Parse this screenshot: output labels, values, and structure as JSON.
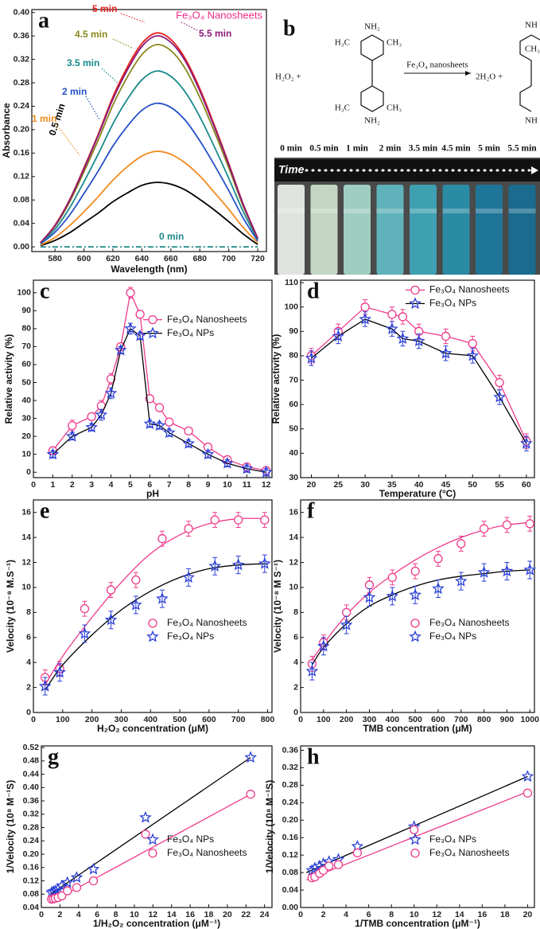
{
  "chart_data": [
    {
      "type": "line",
      "panel": "a",
      "title": "Fe₃O₄ Nanosheets",
      "x_label": "Wavelength (nm)",
      "y_label": "Absorbance",
      "x": [
        570,
        580,
        590,
        600,
        610,
        620,
        630,
        640,
        650,
        660,
        670,
        680,
        690,
        700,
        710,
        720
      ],
      "series": [
        {
          "name": "0 min",
          "color": "#1f8a8a",
          "linestyle": "dashdot",
          "values": [
            0,
            0,
            0,
            0,
            0,
            0,
            0,
            0,
            0,
            0,
            0,
            0,
            0,
            0,
            0,
            0
          ]
        },
        {
          "name": "0.5 min",
          "color": "#000000",
          "values": [
            0.002,
            0.011,
            0.024,
            0.041,
            0.058,
            0.077,
            0.092,
            0.105,
            0.11,
            0.107,
            0.097,
            0.081,
            0.063,
            0.043,
            0.022,
            0.004
          ]
        },
        {
          "name": "1 min",
          "color": "#f28a1e",
          "values": [
            0.003,
            0.016,
            0.036,
            0.06,
            0.086,
            0.114,
            0.137,
            0.155,
            0.163,
            0.158,
            0.143,
            0.121,
            0.093,
            0.064,
            0.033,
            0.007
          ]
        },
        {
          "name": "2 min",
          "color": "#2450c8",
          "values": [
            0.005,
            0.025,
            0.054,
            0.091,
            0.13,
            0.172,
            0.206,
            0.233,
            0.245,
            0.238,
            0.216,
            0.181,
            0.14,
            0.096,
            0.049,
            0.01
          ]
        },
        {
          "name": "3.5 min",
          "color": "#1a8a8c",
          "values": [
            0.006,
            0.03,
            0.066,
            0.111,
            0.159,
            0.21,
            0.252,
            0.285,
            0.3,
            0.291,
            0.264,
            0.222,
            0.171,
            0.117,
            0.06,
            0.012
          ]
        },
        {
          "name": "4.5 min",
          "color": "#8a861c",
          "values": [
            0.007,
            0.035,
            0.076,
            0.128,
            0.183,
            0.242,
            0.29,
            0.328,
            0.345,
            0.335,
            0.304,
            0.255,
            0.197,
            0.135,
            0.069,
            0.014
          ]
        },
        {
          "name": "5 min",
          "color": "#e8201e",
          "values": [
            0.007,
            0.037,
            0.08,
            0.135,
            0.193,
            0.256,
            0.307,
            0.347,
            0.365,
            0.354,
            0.321,
            0.27,
            0.208,
            0.142,
            0.073,
            0.015
          ]
        },
        {
          "name": "5.5 min",
          "color": "#8a1a7a",
          "values": [
            0.007,
            0.036,
            0.079,
            0.133,
            0.191,
            0.252,
            0.302,
            0.342,
            0.36,
            0.349,
            0.317,
            0.266,
            0.205,
            0.14,
            0.072,
            0.014
          ]
        }
      ],
      "xlim": [
        564,
        726
      ],
      "xticks": [
        580,
        600,
        620,
        640,
        660,
        680,
        700,
        720
      ],
      "ylim": [
        -0.008,
        0.405
      ],
      "yticks": [
        {
          "value": 0,
          "label": "0.00"
        },
        0.04,
        0.08,
        0.12,
        0.16,
        {
          "value": 0.2,
          "label": "0.20"
        },
        0.24,
        0.28,
        0.32,
        0.36,
        {
          "value": 0.4,
          "label": "0.40"
        }
      ]
    },
    {
      "type": "line",
      "panel": "c",
      "x_label": "pH",
      "y_label": "Relative activity (%)",
      "legend": "upper right",
      "x": [
        1,
        2,
        3,
        3.5,
        4,
        4.5,
        5,
        5.5,
        6,
        6.5,
        7,
        8,
        9,
        10,
        11,
        12
      ],
      "series": [
        {
          "name": "Fe₃O₄ Nanosheets",
          "color": "#ee3b8c",
          "line_color": "#ee3b8c",
          "marker": "circle",
          "values": [
            12,
            26,
            31,
            37,
            52,
            70,
            100,
            88,
            41,
            36,
            28,
            23,
            14,
            7,
            3,
            1
          ],
          "errors": [
            2,
            3,
            2,
            3,
            3,
            2,
            3,
            2,
            2,
            2,
            2,
            2,
            2,
            2,
            2,
            2
          ]
        },
        {
          "name": "Fe₃O₄ NPs",
          "color": "#2a3fd6",
          "line_color": "#000000",
          "marker": "star",
          "values": [
            10,
            20,
            25,
            32,
            44,
            68,
            80,
            76,
            27,
            26,
            22,
            16,
            10,
            5,
            2,
            0
          ],
          "errors": [
            2,
            2,
            2,
            3,
            3,
            2,
            3,
            2,
            2,
            2,
            2,
            2,
            2,
            2,
            2,
            2
          ]
        }
      ],
      "xlim": [
        0,
        12.3
      ],
      "xticks": [
        0,
        1,
        2,
        3,
        4,
        5,
        6,
        7,
        8,
        9,
        10,
        11,
        12
      ],
      "ylim": [
        -3,
        107
      ],
      "yticks": [
        0,
        10,
        20,
        30,
        40,
        50,
        60,
        70,
        80,
        90,
        100
      ]
    },
    {
      "type": "line",
      "panel": "d",
      "x_label": "Temperature (°C)",
      "y_label": "Relative activity (%)",
      "legend": "upper right",
      "x": [
        20,
        25,
        30,
        35,
        37,
        40,
        45,
        50,
        55,
        60
      ],
      "series": [
        {
          "name": "Fe₃O₄ Nanosheets",
          "color": "#ee3b8c",
          "line_color": "#ee3b8c",
          "marker": "circle",
          "values": [
            80,
            90,
            100,
            97,
            96,
            90,
            88,
            85,
            69,
            45
          ],
          "errors": [
            3,
            3,
            3,
            3,
            3,
            3,
            3,
            3,
            3,
            3
          ]
        },
        {
          "name": "Fe₃O₄ NPs",
          "color": "#2a3fd6",
          "line_color": "#000000",
          "marker": "star",
          "values": [
            79,
            88,
            95,
            91,
            87,
            86,
            81,
            80,
            63,
            44
          ],
          "errors": [
            3,
            3,
            3,
            3,
            3,
            3,
            3,
            3,
            3,
            3
          ]
        }
      ],
      "xlim": [
        18,
        61.5
      ],
      "xticks": [
        20,
        25,
        30,
        35,
        40,
        45,
        50,
        55,
        60
      ],
      "ylim": [
        30,
        111
      ],
      "yticks": [
        30,
        40,
        50,
        60,
        70,
        80,
        90,
        100,
        110
      ]
    },
    {
      "type": "scatter",
      "panel": "e",
      "x_label": "H₂O₂ concentration (μM)",
      "y_label": "Velocity (10⁻⁸ M.S⁻¹)",
      "legend": "center right",
      "x": [
        40,
        90,
        175,
        265,
        350,
        440,
        530,
        620,
        700,
        790
      ],
      "series": [
        {
          "name": "Fe₃O₄ Nanosheets",
          "color": "#ee3b8c",
          "line_color": "#ee3b8c",
          "marker": "circle",
          "values": [
            2.8,
            3.5,
            8.3,
            9.8,
            10.6,
            13.9,
            14.7,
            15.4,
            15.4,
            15.4
          ],
          "errors": [
            0.6,
            0.6,
            0.6,
            0.6,
            0.6,
            0.6,
            0.6,
            0.6,
            0.6,
            0.6
          ],
          "fit": {
            "x": [
              40,
              100,
              200,
              300,
              400,
              500,
              600,
              700,
              800
            ],
            "values": [
              2.2,
              4.5,
              7.6,
              10.4,
              12.7,
              14.2,
              15.1,
              15.5,
              15.5
            ]
          }
        },
        {
          "name": "Fe₃O₄ NPs",
          "color": "#2a3fd6",
          "line_color": "#000000",
          "marker": "star",
          "values": [
            2.1,
            3.2,
            6.3,
            7.4,
            8.6,
            9.1,
            10.8,
            11.7,
            11.8,
            11.9
          ],
          "errors": [
            0.7,
            0.7,
            0.7,
            0.7,
            0.7,
            0.7,
            0.7,
            0.7,
            0.7,
            0.7
          ],
          "fit": {
            "x": [
              40,
              100,
              200,
              300,
              400,
              500,
              600,
              700,
              800
            ],
            "values": [
              1.8,
              3.8,
              6.2,
              8.2,
              9.7,
              10.8,
              11.5,
              11.8,
              11.9
            ]
          }
        }
      ],
      "xlim": [
        0,
        815
      ],
      "xticks": [
        0,
        100,
        200,
        300,
        400,
        500,
        600,
        700,
        800
      ],
      "ylim": [
        0,
        17
      ],
      "yticks": [
        0,
        2,
        4,
        6,
        8,
        10,
        12,
        14,
        16
      ]
    },
    {
      "type": "scatter",
      "panel": "f",
      "x_label": "TMB concentration (μM)",
      "y_label": "Velocity (10⁻⁸ M S⁻¹)",
      "legend": "center right",
      "x": [
        50,
        100,
        200,
        300,
        400,
        500,
        600,
        700,
        800,
        900,
        1000
      ],
      "series": [
        {
          "name": "Fe₃O₄ Nanosheets",
          "color": "#ee3b8c",
          "line_color": "#ee3b8c",
          "marker": "circle",
          "values": [
            3.9,
            5.6,
            8.0,
            10.2,
            10.8,
            11.3,
            12.3,
            13.5,
            14.7,
            15.0,
            15.1
          ],
          "errors": [
            0.6,
            0.6,
            0.6,
            0.6,
            0.6,
            0.6,
            0.6,
            0.6,
            0.6,
            0.6,
            0.6
          ],
          "fit": {
            "x": [
              50,
              100,
              200,
              300,
              400,
              500,
              600,
              700,
              800,
              900,
              1000
            ],
            "values": [
              4.2,
              5.5,
              7.8,
              9.6,
              11.0,
              12.2,
              13.2,
              14.0,
              14.6,
              15.0,
              15.2
            ]
          }
        },
        {
          "name": "Fe₃O₄ NPs",
          "color": "#2a3fd6",
          "line_color": "#000000",
          "marker": "star",
          "values": [
            3.3,
            5.3,
            7.0,
            9.2,
            9.3,
            9.4,
            9.9,
            10.5,
            11.2,
            11.3,
            11.4
          ],
          "errors": [
            0.7,
            0.7,
            0.7,
            0.7,
            0.7,
            0.7,
            0.7,
            0.7,
            0.7,
            0.7,
            0.7
          ],
          "fit": {
            "x": [
              50,
              100,
              200,
              300,
              400,
              500,
              600,
              700,
              800,
              900,
              1000
            ],
            "values": [
              3.8,
              5.2,
              7.1,
              8.5,
              9.4,
              10.1,
              10.6,
              10.9,
              11.1,
              11.3,
              11.4
            ]
          }
        }
      ],
      "xlim": [
        0,
        1020
      ],
      "xticks": [
        0,
        100,
        200,
        300,
        400,
        500,
        600,
        700,
        800,
        900,
        1000
      ],
      "ylim": [
        0,
        17
      ],
      "yticks": [
        0,
        2,
        4,
        6,
        8,
        10,
        12,
        14,
        16
      ]
    },
    {
      "type": "scatter",
      "panel": "g",
      "x_label": "1/H₂O₂ concentration (μM⁻¹)",
      "y_label": "1/Velocity (10⁸ M⁻¹S)",
      "legend": "center right",
      "x": [
        1.1,
        1.3,
        1.5,
        1.8,
        2.2,
        2.8,
        3.8,
        5.6,
        11.2,
        22.5
      ],
      "series": [
        {
          "name": "Fe₃O₄ NPs",
          "color": "#2a3fd6",
          "line_color": "#000000",
          "marker": "star",
          "values": [
            0.085,
            0.088,
            0.09,
            0.095,
            0.105,
            0.115,
            0.13,
            0.155,
            0.31,
            0.49
          ],
          "fit": {
            "x": [
              1,
              22.5
            ],
            "values": [
              0.08,
              0.49
            ]
          }
        },
        {
          "name": "Fe₃O₄ Nanosheets",
          "color": "#ee3b8c",
          "line_color": "#ee3b8c",
          "marker": "circle",
          "values": [
            0.065,
            0.066,
            0.068,
            0.07,
            0.075,
            0.09,
            0.1,
            0.12,
            0.26,
            0.38
          ],
          "fit": {
            "x": [
              1,
              22.5
            ],
            "values": [
              0.055,
              0.38
            ]
          }
        }
      ],
      "xlim": [
        0,
        24.8
      ],
      "xticks": [
        0,
        2,
        4,
        6,
        8,
        10,
        12,
        14,
        16,
        18,
        20,
        22,
        24
      ],
      "ylim": [
        0.04,
        0.525
      ],
      "yticks": [
        0.04,
        0.08,
        0.12,
        0.16,
        {
          "value": 0.2,
          "label": "0.20"
        },
        0.24,
        0.28,
        0.32,
        0.36,
        {
          "value": 0.4,
          "label": "0.40"
        },
        0.44,
        0.48,
        0.52
      ]
    },
    {
      "type": "scatter",
      "panel": "h",
      "x_label": "1/TMB concentration (μM⁻¹)",
      "y_label": "1/Velocity (10⁸ M⁻¹S)",
      "legend": "center right",
      "x": [
        1,
        1.25,
        1.67,
        2,
        2.5,
        3.33,
        5,
        10,
        20
      ],
      "series": [
        {
          "name": "Fe₃O₄ NPs",
          "color": "#2a3fd6",
          "line_color": "#000000",
          "marker": "star",
          "values": [
            0.085,
            0.09,
            0.095,
            0.1,
            0.105,
            0.11,
            0.14,
            0.185,
            0.3
          ],
          "fit": {
            "x": [
              0.5,
              20
            ],
            "values": [
              0.08,
              0.3
            ]
          }
        },
        {
          "name": "Fe₃O₄ Nanosheets",
          "color": "#ee3b8c",
          "line_color": "#ee3b8c",
          "marker": "circle",
          "values": [
            0.068,
            0.07,
            0.078,
            0.085,
            0.095,
            0.098,
            0.125,
            0.178,
            0.262
          ],
          "fit": {
            "x": [
              0.5,
              20
            ],
            "values": [
              0.063,
              0.265
            ]
          }
        }
      ],
      "xlim": [
        0,
        20.6
      ],
      "xticks": [
        0,
        2,
        4,
        6,
        8,
        10,
        12,
        14,
        16,
        18,
        20
      ],
      "ylim": [
        0,
        0.37
      ],
      "yticks": [
        {
          "value": 0,
          "label": "0.00"
        },
        0.04,
        0.08,
        0.12,
        0.16,
        {
          "value": 0.2,
          "label": "0.20"
        },
        0.24,
        0.28,
        0.32,
        0.36
      ]
    }
  ],
  "panel_b": {
    "letter": "b",
    "reactant": "H₂O₂ +",
    "catalyst": "Fe₃O₄ nanosheets",
    "product": "2H₂O +",
    "tmb_groups": [
      "NH₂",
      "H₃C",
      "CH₃",
      "H₃C",
      "CH₃",
      "NH₂"
    ],
    "oxidized_groups": [
      "NH",
      "CH₃",
      "NH"
    ],
    "time_label": "Time",
    "times": [
      "0 min",
      "0.5 min",
      "1 min",
      "2 min",
      "3.5 min",
      "4.5 min",
      "5 min",
      "5.5 min"
    ]
  }
}
